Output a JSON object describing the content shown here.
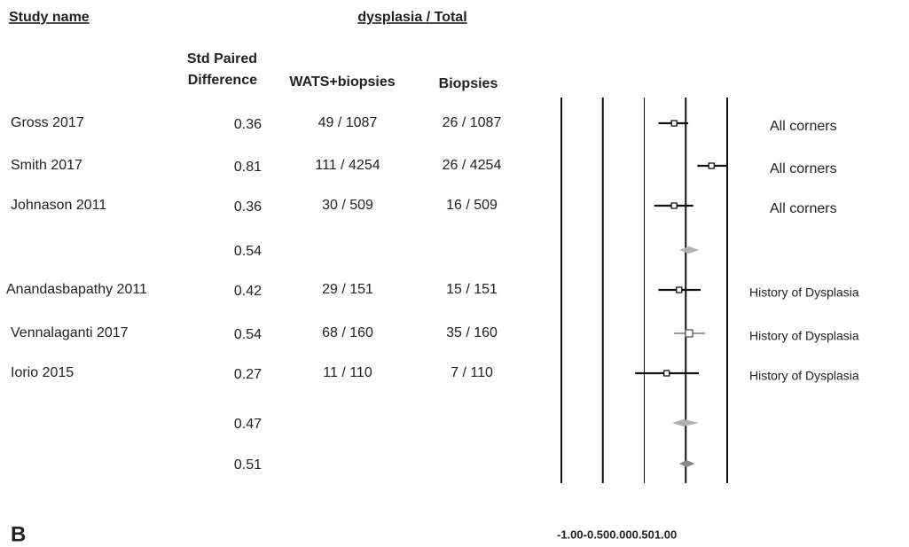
{
  "chart_data": {
    "type": "forest",
    "headers": {
      "study": "Study name",
      "group_header": "dysplasia / Total",
      "effect": [
        "Std Paired",
        "Difference"
      ],
      "wats": "WATS+biopsies",
      "biopsies": "Biopsies"
    },
    "panel_label": "B",
    "rows": [
      {
        "name": "Gross 2017",
        "value": 0.36,
        "ci": [
          0.17,
          0.53
        ],
        "wats": "49 /  1087",
        "biopsies": "26 / 1087",
        "group": "All corners",
        "color": "#111111"
      },
      {
        "name": "Smith 2017",
        "value": 0.81,
        "ci": [
          0.64,
          1.0
        ],
        "wats": "111 /  4254",
        "biopsies": "26 / 4254",
        "group": "All corners",
        "color": "#111111"
      },
      {
        "name": "Johnason 2011",
        "value": 0.36,
        "ci": [
          0.12,
          0.59
        ],
        "wats": "30 /  509",
        "biopsies": "16 / 509",
        "group": "All corners",
        "color": "#111111"
      },
      {
        "value": 0.54,
        "ci": [
          0.42,
          0.66
        ],
        "color": "#b0b0b0"
      },
      {
        "name": "Anandasbapathy 2011",
        "value": 0.42,
        "ci": [
          0.17,
          0.68
        ],
        "wats": "29 / 151",
        "biopsies": "15 / 151",
        "group": "History of Dysplasia",
        "color": "#111111"
      },
      {
        "name": "Vennalaganti 2017",
        "value": 0.54,
        "ci": [
          0.36,
          0.73
        ],
        "wats": "68 /  160",
        "biopsies": "35 / 160",
        "group": "History of Dysplasia",
        "color": "#555555"
      },
      {
        "name": "Iorio 2015",
        "value": 0.27,
        "ci": [
          -0.11,
          0.66
        ],
        "wats": "11 /  110",
        "biopsies": "7 /  110",
        "group": "History of Dysplasia",
        "color": "#111111"
      },
      {
        "value": 0.47,
        "ci": [
          0.34,
          0.66
        ],
        "color": "#b0b0b0"
      },
      {
        "value": 0.51,
        "ci": [
          0.42,
          0.61
        ],
        "color": "#888888"
      }
    ],
    "xlim": [
      -1,
      1
    ],
    "xticks": [
      {
        "value": -1,
        "label": "-1.00"
      },
      {
        "value": -0.5,
        "label": "-0.50"
      },
      {
        "value": 0,
        "label": "0.00"
      },
      {
        "value": 0.5,
        "label": "0.50"
      },
      {
        "value": 1,
        "label": "1.00"
      }
    ]
  }
}
